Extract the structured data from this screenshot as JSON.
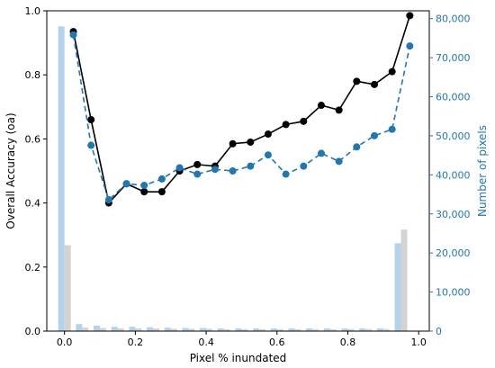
{
  "chart_data": {
    "type": "line",
    "title": "",
    "xlabel": "Pixel % inundated",
    "ylabel_left": "Overall Accuracy (oa)",
    "ylabel_right": "Number of pixels",
    "xlim": [
      -0.05,
      1.03
    ],
    "ylim_left": [
      0.0,
      1.0
    ],
    "ylim_right": [
      0,
      82000
    ],
    "x_ticks": [
      "0.0",
      "0.2",
      "0.4",
      "0.6",
      "0.8",
      "1.0"
    ],
    "x_tick_values": [
      0.0,
      0.2,
      0.4,
      0.6,
      0.8,
      1.0
    ],
    "y_left_ticks": [
      "0.0",
      "0.2",
      "0.4",
      "0.6",
      "0.8",
      "1.0"
    ],
    "y_left_tick_values": [
      0.0,
      0.2,
      0.4,
      0.6,
      0.8,
      1.0
    ],
    "y_right_ticks": [
      "0",
      "10,000",
      "20,000",
      "30,000",
      "40,000",
      "50,000",
      "60,000",
      "70,000",
      "80,000"
    ],
    "y_right_tick_values": [
      0,
      10000,
      20000,
      30000,
      40000,
      50000,
      60000,
      70000,
      80000
    ],
    "grid": false,
    "legend": "none",
    "x": [
      0.025,
      0.075,
      0.125,
      0.175,
      0.225,
      0.275,
      0.325,
      0.375,
      0.425,
      0.475,
      0.525,
      0.575,
      0.625,
      0.675,
      0.725,
      0.775,
      0.825,
      0.875,
      0.925,
      0.975
    ],
    "series": [
      {
        "axis": "left",
        "color": "#000000",
        "style": "solid",
        "values": [
          0.935,
          0.66,
          0.4,
          0.46,
          0.435,
          0.435,
          0.5,
          0.52,
          0.515,
          0.585,
          0.59,
          0.615,
          0.645,
          0.655,
          0.705,
          0.69,
          0.78,
          0.77,
          0.81,
          0.985
        ]
      },
      {
        "axis": "left",
        "color": "#1f77b4",
        "style": "dashed",
        "values": [
          0.925,
          0.58,
          0.41,
          0.46,
          0.455,
          0.475,
          0.51,
          0.49,
          0.505,
          0.5,
          0.515,
          0.55,
          0.49,
          0.515,
          0.555,
          0.53,
          0.575,
          0.61,
          0.63,
          0.89
        ]
      }
    ],
    "histograms": {
      "axis": "right",
      "bin_centers": [
        0.0,
        0.05,
        0.1,
        0.15,
        0.2,
        0.25,
        0.3,
        0.35,
        0.4,
        0.45,
        0.5,
        0.55,
        0.6,
        0.65,
        0.7,
        0.75,
        0.8,
        0.85,
        0.9,
        0.95
      ],
      "blue": {
        "color": "#b3d3ea",
        "values": [
          78000,
          1800,
          1400,
          1100,
          1100,
          1000,
          900,
          800,
          800,
          700,
          700,
          700,
          700,
          700,
          700,
          700,
          700,
          700,
          700,
          22500
        ]
      },
      "gray": {
        "color": "#d3d3d3",
        "values": [
          22000,
          900,
          800,
          700,
          700,
          700,
          600,
          600,
          600,
          500,
          500,
          500,
          500,
          500,
          500,
          500,
          500,
          500,
          500,
          26000
        ]
      }
    }
  }
}
